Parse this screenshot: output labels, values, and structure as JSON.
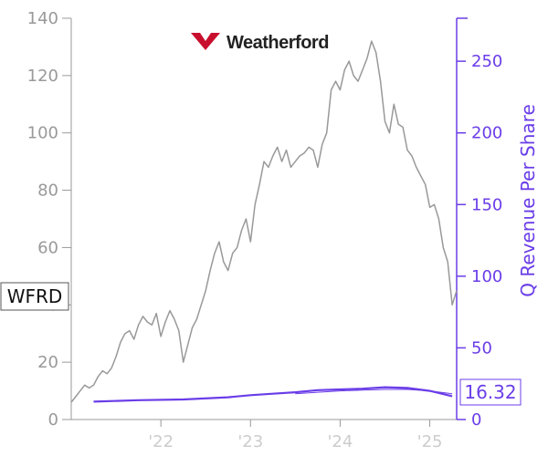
{
  "chart_data": {
    "type": "line",
    "title": "",
    "ticker": "WFRD",
    "company_logo_text": "Weatherford",
    "ylabel_right": "Q Revenue Per Share",
    "current_value_label": "16.32",
    "x_tick_labels": [
      "'22",
      "'23",
      "'24",
      "'25"
    ],
    "x_tick_positions": [
      2022,
      2023,
      2024,
      2025
    ],
    "xlim": [
      2021.0,
      2025.3
    ],
    "ylim_left": [
      0,
      140
    ],
    "yticks_left": [
      0,
      20,
      40,
      60,
      80,
      100,
      120,
      140
    ],
    "ylim_right": [
      0,
      280
    ],
    "yticks_right": [
      0,
      50,
      100,
      150,
      200,
      250
    ],
    "grid": false,
    "colors": {
      "price": "#999999",
      "revenue": "#6a3de8",
      "left_axis": "#999999",
      "right_axis": "#6a3de8",
      "logo_mark": "#c8102e"
    },
    "series": [
      {
        "axis": "left",
        "x": [
          2021.0,
          2021.05,
          2021.1,
          2021.15,
          2021.2,
          2021.25,
          2021.3,
          2021.35,
          2021.4,
          2021.45,
          2021.5,
          2021.55,
          2021.6,
          2021.65,
          2021.7,
          2021.75,
          2021.8,
          2021.85,
          2021.9,
          2021.95,
          2022.0,
          2022.05,
          2022.1,
          2022.15,
          2022.2,
          2022.25,
          2022.3,
          2022.35,
          2022.4,
          2022.45,
          2022.5,
          2022.55,
          2022.6,
          2022.65,
          2022.7,
          2022.75,
          2022.8,
          2022.85,
          2022.9,
          2022.95,
          2023.0,
          2023.05,
          2023.1,
          2023.15,
          2023.2,
          2023.25,
          2023.3,
          2023.35,
          2023.4,
          2023.45,
          2023.5,
          2023.55,
          2023.6,
          2023.65,
          2023.7,
          2023.75,
          2023.8,
          2023.85,
          2023.9,
          2023.95,
          2024.0,
          2024.05,
          2024.1,
          2024.15,
          2024.2,
          2024.25,
          2024.3,
          2024.35,
          2024.4,
          2024.45,
          2024.5,
          2024.55,
          2024.6,
          2024.65,
          2024.7,
          2024.75,
          2024.8,
          2024.85,
          2024.9,
          2024.95,
          2025.0,
          2025.05,
          2025.1,
          2025.15,
          2025.2,
          2025.25,
          2025.3
        ],
        "values": [
          6,
          8,
          10,
          12,
          11,
          12,
          15,
          17,
          16,
          18,
          22,
          27,
          30,
          31,
          28,
          33,
          36,
          34,
          33,
          37,
          29,
          34,
          38,
          35,
          31,
          20,
          26,
          32,
          35,
          40,
          45,
          52,
          58,
          62,
          55,
          52,
          58,
          60,
          66,
          70,
          62,
          75,
          82,
          90,
          88,
          92,
          95,
          90,
          94,
          88,
          90,
          92,
          93,
          95,
          94,
          88,
          96,
          100,
          115,
          118,
          115,
          122,
          125,
          120,
          118,
          122,
          126,
          132,
          128,
          118,
          104,
          100,
          110,
          103,
          102,
          94,
          92,
          88,
          85,
          82,
          74,
          75,
          70,
          60,
          55,
          40,
          45
        ]
      },
      {
        "axis": "right",
        "x": [
          2021.25,
          2021.75,
          2022.25,
          2022.75,
          2023.0,
          2023.25,
          2023.5,
          2023.75,
          2024.0,
          2024.25,
          2024.5,
          2024.75,
          2025.0,
          2025.25
        ],
        "values": [
          12.5,
          13.5,
          14,
          15.5,
          17,
          18,
          19,
          20.5,
          21,
          21.5,
          22.5,
          22,
          20,
          16.32
        ]
      },
      {
        "axis": "right",
        "x": [
          2023.5,
          2023.75,
          2024.0,
          2024.25,
          2024.5,
          2024.75,
          2025.0,
          2025.25
        ],
        "values": [
          18,
          19,
          20,
          20.5,
          21,
          21,
          20,
          18
        ]
      }
    ]
  }
}
